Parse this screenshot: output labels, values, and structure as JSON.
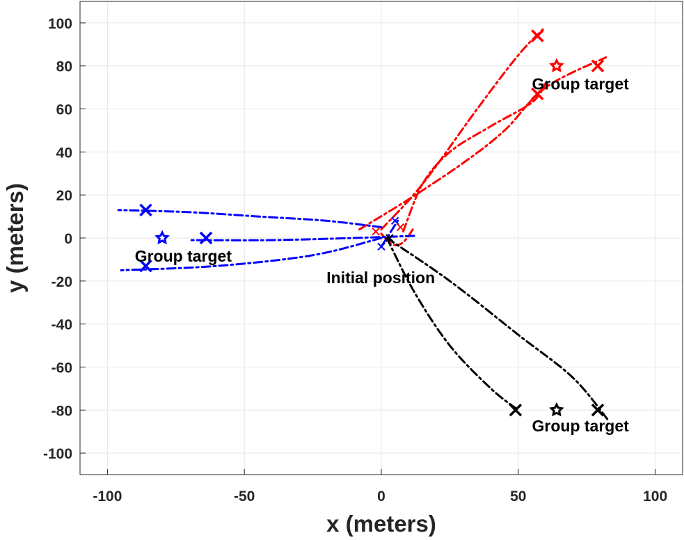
{
  "chart_data": {
    "type": "line",
    "xlabel": "x (meters)",
    "ylabel": "y (meters)",
    "xlim": [
      -110,
      110
    ],
    "ylim": [
      -110,
      110
    ],
    "xticks": [
      -100,
      -50,
      0,
      50,
      100
    ],
    "yticks": [
      100,
      80,
      60,
      40,
      20,
      0,
      -20,
      -40,
      -60,
      -80,
      -100
    ],
    "grid": true,
    "colors": {
      "red": "#ff0000",
      "blue": "#0000ff",
      "black": "#000000"
    },
    "annotations": [
      {
        "text": "Group target",
        "x": 55,
        "y": 69
      },
      {
        "text": "Group target",
        "x": -90,
        "y": -11
      },
      {
        "text": "Group target",
        "x": 55,
        "y": -90
      },
      {
        "text": "Initial position",
        "x": -20,
        "y": -21
      }
    ],
    "series": [
      {
        "color": "red",
        "points": [
          [
            0,
            4
          ],
          [
            15,
            25
          ],
          [
            35,
            60
          ],
          [
            50,
            85
          ],
          [
            59,
            97
          ]
        ]
      },
      {
        "color": "red",
        "points": [
          [
            -8,
            4
          ],
          [
            10,
            18
          ],
          [
            30,
            35
          ],
          [
            45,
            50
          ],
          [
            60,
            70
          ],
          [
            82,
            84
          ]
        ]
      },
      {
        "color": "red",
        "points": [
          [
            8,
            3
          ],
          [
            15,
            25
          ],
          [
            25,
            40
          ],
          [
            40,
            52
          ],
          [
            55,
            63
          ],
          [
            60,
            72
          ]
        ]
      },
      {
        "color": "red",
        "points": [
          [
            0,
            2
          ],
          [
            4,
            -3
          ],
          [
            8,
            -2
          ],
          [
            12,
            5
          ]
        ]
      },
      {
        "color": "blue",
        "points": [
          [
            0,
            5
          ],
          [
            -20,
            8
          ],
          [
            -45,
            10
          ],
          [
            -70,
            12
          ],
          [
            -96,
            13
          ]
        ]
      },
      {
        "color": "blue",
        "points": [
          [
            12,
            1
          ],
          [
            -10,
            0
          ],
          [
            -40,
            -1
          ],
          [
            -70,
            -1
          ]
        ]
      },
      {
        "color": "blue",
        "points": [
          [
            0,
            0
          ],
          [
            -25,
            -8
          ],
          [
            -60,
            -13
          ],
          [
            -95,
            -15
          ]
        ]
      },
      {
        "color": "blue",
        "points": [
          [
            0,
            -4
          ],
          [
            3,
            2
          ],
          [
            6,
            8
          ]
        ]
      },
      {
        "color": "black",
        "points": [
          [
            2,
            0
          ],
          [
            12,
            -25
          ],
          [
            25,
            -50
          ],
          [
            40,
            -70
          ],
          [
            50,
            -80
          ]
        ]
      },
      {
        "color": "black",
        "points": [
          [
            2,
            0
          ],
          [
            25,
            -20
          ],
          [
            50,
            -45
          ],
          [
            70,
            -65
          ],
          [
            83,
            -85
          ]
        ]
      }
    ],
    "markers": [
      {
        "type": "cross",
        "color": "red",
        "x": 57,
        "y": 94
      },
      {
        "type": "cross",
        "color": "red",
        "x": 79,
        "y": 80
      },
      {
        "type": "cross",
        "color": "red",
        "x": 57,
        "y": 67
      },
      {
        "type": "star",
        "color": "red",
        "x": 64,
        "y": 80
      },
      {
        "type": "cross",
        "color": "blue",
        "x": -86,
        "y": 13
      },
      {
        "type": "cross",
        "color": "blue",
        "x": -64,
        "y": 0
      },
      {
        "type": "cross",
        "color": "blue",
        "x": -86,
        "y": -13
      },
      {
        "type": "star",
        "color": "blue",
        "x": -80,
        "y": 0
      },
      {
        "type": "cross",
        "color": "black",
        "x": 49,
        "y": -80
      },
      {
        "type": "cross",
        "color": "black",
        "x": 79,
        "y": -80
      },
      {
        "type": "star",
        "color": "black",
        "x": 64,
        "y": -80
      },
      {
        "type": "cross-small",
        "color": "blue",
        "x": 5,
        "y": 8
      },
      {
        "type": "cross-small",
        "color": "blue",
        "x": 0,
        "y": -4
      },
      {
        "type": "cross-small",
        "color": "red",
        "x": -2,
        "y": 3
      },
      {
        "type": "cross-small",
        "color": "red",
        "x": 7,
        "y": 5
      },
      {
        "type": "cross-small",
        "color": "black",
        "x": 3,
        "y": 0
      }
    ]
  }
}
